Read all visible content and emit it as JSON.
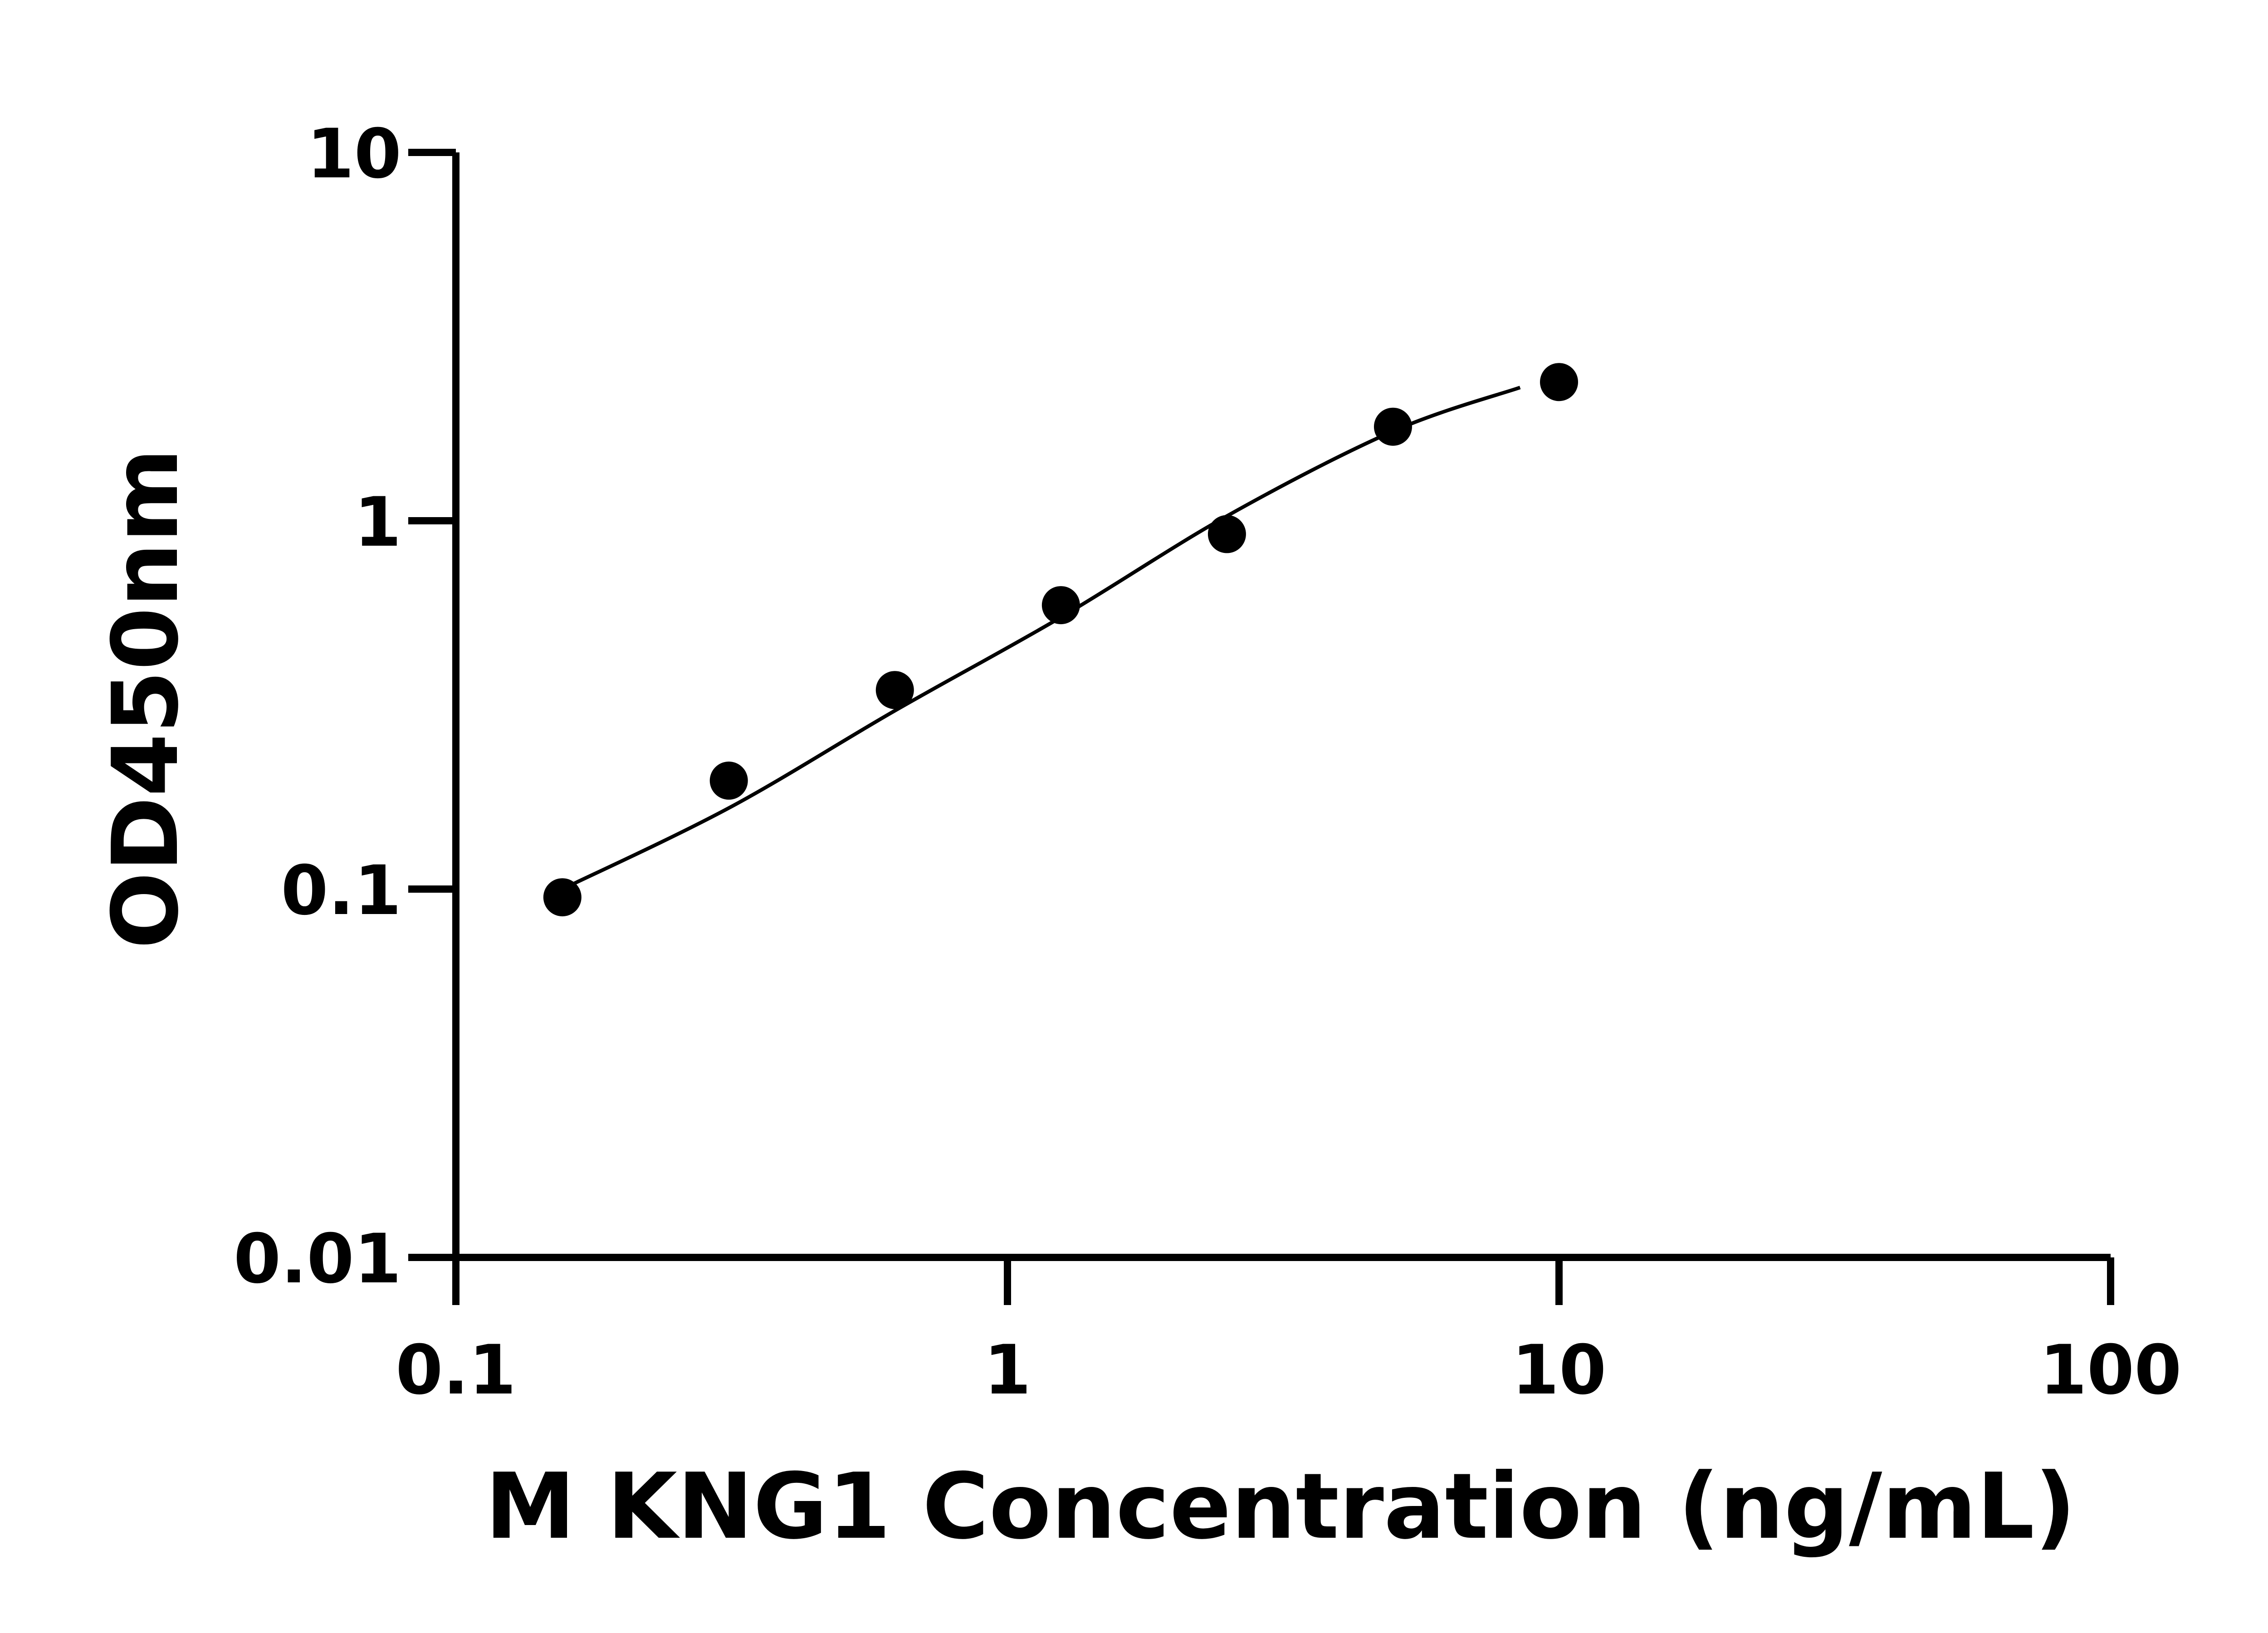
{
  "chart_data": {
    "type": "scatter",
    "title": "",
    "xlabel": "M KNG1 Concentration (ng/mL)",
    "ylabel": "OD450nm",
    "x_scale": "log",
    "y_scale": "log",
    "xlim": [
      0.1,
      100
    ],
    "ylim": [
      0.01,
      10
    ],
    "x_ticks": [
      "0.1",
      "1",
      "10",
      "100"
    ],
    "y_ticks": [
      "0.01",
      "0.1",
      "1",
      "10"
    ],
    "grid": false,
    "point_color": "#000000",
    "series": [
      {
        "x": [
          0.156,
          0.3125,
          0.625,
          1.25,
          2.5,
          5,
          10
        ],
        "y": [
          0.095,
          0.197,
          0.347,
          0.59,
          0.92,
          1.8,
          2.38
        ]
      }
    ],
    "fit_curve": {
      "x": [
        0.156,
        0.3125,
        0.625,
        1.25,
        2.5,
        5,
        8.5
      ],
      "y": [
        0.1,
        0.166,
        0.305,
        0.547,
        1.03,
        1.75,
        2.3
      ]
    }
  }
}
